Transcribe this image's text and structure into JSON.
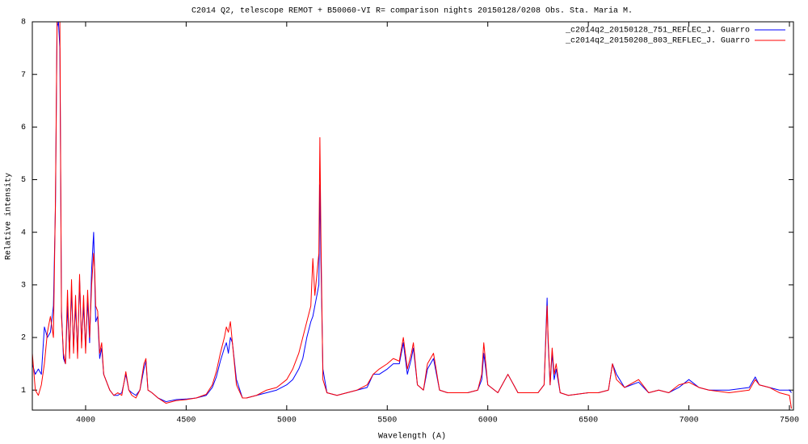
{
  "chart_data": {
    "type": "line",
    "title": "C2014 Q2, telescope REMOT + B50060-VI  R=  comparison nights 20150128/0208  Obs. Sta. Maria  M.",
    "xlabel": "Wavelength (A)",
    "ylabel": "Relative intensity",
    "xlim": [
      3735,
      7520
    ],
    "ylim": [
      0.62,
      8
    ],
    "xticks": [
      4000,
      4500,
      5000,
      5500,
      6000,
      6500,
      7000,
      7500
    ],
    "yticks": [
      1,
      2,
      3,
      4,
      5,
      6,
      7,
      8
    ],
    "legend": "top right",
    "x": [
      3735,
      3750,
      3765,
      3780,
      3795,
      3810,
      3825,
      3840,
      3850,
      3858,
      3865,
      3872,
      3880,
      3890,
      3900,
      3910,
      3920,
      3930,
      3940,
      3950,
      3960,
      3970,
      3980,
      3990,
      4000,
      4010,
      4020,
      4030,
      4040,
      4045,
      4050,
      4060,
      4070,
      4080,
      4090,
      4100,
      4120,
      4140,
      4160,
      4180,
      4200,
      4215,
      4230,
      4250,
      4270,
      4290,
      4300,
      4310,
      4330,
      4360,
      4400,
      4450,
      4500,
      4550,
      4600,
      4630,
      4650,
      4670,
      4690,
      4700,
      4710,
      4720,
      4730,
      4750,
      4780,
      4800,
      4850,
      4900,
      4950,
      5000,
      5030,
      5060,
      5080,
      5100,
      5120,
      5130,
      5140,
      5150,
      5160,
      5165,
      5170,
      5180,
      5200,
      5250,
      5300,
      5350,
      5400,
      5430,
      5460,
      5500,
      5530,
      5560,
      5580,
      5600,
      5620,
      5630,
      5650,
      5680,
      5700,
      5730,
      5760,
      5800,
      5850,
      5900,
      5950,
      5970,
      5980,
      5990,
      6000,
      6050,
      6100,
      6150,
      6200,
      6250,
      6280,
      6295,
      6300,
      6310,
      6320,
      6330,
      6340,
      6360,
      6400,
      6500,
      6550,
      6600,
      6620,
      6640,
      6680,
      6750,
      6800,
      6850,
      6900,
      6950,
      7000,
      7050,
      7100,
      7200,
      7300,
      7330,
      7350,
      7400,
      7450,
      7500,
      7510
    ],
    "series": [
      {
        "name": "_c2014q2_20150128_751_REFLEC_J. Guarro",
        "color": "#0000ff",
        "values": [
          1.5,
          1.3,
          1.4,
          1.3,
          2.2,
          2.0,
          2.1,
          2.6,
          4.5,
          7.9,
          8.0,
          7.5,
          2.5,
          1.6,
          1.5,
          2.6,
          1.7,
          2.9,
          1.8,
          2.6,
          1.7,
          3.1,
          1.9,
          2.6,
          1.8,
          2.7,
          1.9,
          3.3,
          4.0,
          3.2,
          2.3,
          2.4,
          1.6,
          1.8,
          1.3,
          1.2,
          1.0,
          0.9,
          0.9,
          0.95,
          1.3,
          1.0,
          0.95,
          0.9,
          1.0,
          1.4,
          1.55,
          1.0,
          0.95,
          0.85,
          0.78,
          0.82,
          0.83,
          0.85,
          0.9,
          1.05,
          1.25,
          1.55,
          1.8,
          1.9,
          1.7,
          2.0,
          1.9,
          1.2,
          0.85,
          0.85,
          0.9,
          0.95,
          1.0,
          1.1,
          1.2,
          1.4,
          1.6,
          2.0,
          2.3,
          2.4,
          2.6,
          2.8,
          3.0,
          4.9,
          3.5,
          1.4,
          0.95,
          0.9,
          0.95,
          1.0,
          1.05,
          1.3,
          1.3,
          1.4,
          1.5,
          1.5,
          1.9,
          1.3,
          1.6,
          1.8,
          1.1,
          1.0,
          1.4,
          1.6,
          1.0,
          0.95,
          0.95,
          0.95,
          1.0,
          1.2,
          1.7,
          1.4,
          1.1,
          0.95,
          1.3,
          0.95,
          0.95,
          0.95,
          1.1,
          2.75,
          1.9,
          1.1,
          1.7,
          1.2,
          1.4,
          0.95,
          0.9,
          0.95,
          0.95,
          1.0,
          1.5,
          1.3,
          1.05,
          1.15,
          0.95,
          1.0,
          0.95,
          1.05,
          1.2,
          1.05,
          1.0,
          1.0,
          1.05,
          1.25,
          1.1,
          1.05,
          1.0,
          1.0,
          0.95
        ]
      },
      {
        "name": "_c2014q2_20150208_803_REFLEC_J. Guarro",
        "color": "#ff0000",
        "values": [
          1.7,
          1.0,
          0.9,
          1.1,
          1.5,
          2.1,
          2.4,
          2.0,
          4.6,
          8.0,
          8.0,
          8.0,
          2.4,
          1.7,
          1.5,
          2.9,
          1.6,
          3.1,
          1.7,
          2.8,
          1.6,
          3.2,
          1.8,
          2.8,
          1.7,
          2.9,
          2.0,
          3.0,
          3.6,
          3.3,
          2.6,
          2.5,
          1.7,
          1.9,
          1.3,
          1.2,
          1.0,
          0.9,
          0.95,
          0.9,
          1.35,
          1.0,
          0.9,
          0.85,
          1.0,
          1.5,
          1.6,
          1.0,
          0.95,
          0.85,
          0.75,
          0.8,
          0.82,
          0.85,
          0.92,
          1.1,
          1.35,
          1.7,
          2.0,
          2.2,
          2.1,
          2.3,
          1.9,
          1.1,
          0.85,
          0.85,
          0.9,
          1.0,
          1.05,
          1.2,
          1.4,
          1.7,
          2.0,
          2.3,
          2.6,
          3.5,
          2.8,
          3.2,
          3.6,
          5.8,
          4.0,
          1.2,
          0.95,
          0.9,
          0.95,
          1.0,
          1.1,
          1.3,
          1.4,
          1.5,
          1.6,
          1.55,
          2.0,
          1.4,
          1.7,
          1.9,
          1.1,
          1.0,
          1.5,
          1.7,
          1.0,
          0.95,
          0.95,
          0.95,
          1.0,
          1.3,
          1.9,
          1.5,
          1.1,
          0.95,
          1.3,
          0.95,
          0.95,
          0.95,
          1.1,
          2.6,
          2.0,
          1.1,
          1.8,
          1.3,
          1.5,
          0.95,
          0.9,
          0.95,
          0.95,
          1.0,
          1.5,
          1.2,
          1.05,
          1.2,
          0.95,
          1.0,
          0.95,
          1.1,
          1.15,
          1.05,
          1.0,
          0.95,
          1.0,
          1.2,
          1.1,
          1.05,
          0.95,
          0.9,
          0.65
        ]
      }
    ]
  }
}
